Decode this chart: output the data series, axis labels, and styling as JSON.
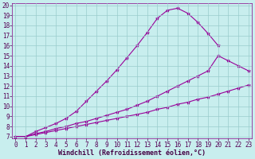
{
  "background_color": "#c8eeee",
  "line_color": "#990099",
  "xlabel": "Windchill (Refroidissement éolien,°C)",
  "xmin": 0,
  "xmax": 23,
  "ymin": 7,
  "ymax": 20,
  "line1_x": [
    0,
    1,
    2,
    3,
    4,
    5,
    6,
    7,
    8,
    9,
    10,
    11,
    12,
    13,
    14,
    15,
    16,
    17,
    18,
    19,
    20
  ],
  "line1_y": [
    7,
    7,
    7.5,
    7.9,
    8.3,
    8.8,
    9.5,
    10.5,
    11.5,
    12.5,
    13.6,
    14.8,
    16.0,
    17.3,
    18.7,
    19.5,
    19.7,
    19.2,
    18.3,
    17.2,
    16.0
  ],
  "line2_x": [
    0,
    1,
    2,
    3,
    4,
    5,
    6,
    7,
    8,
    9,
    10,
    11,
    12,
    13,
    14,
    15,
    16,
    17,
    18,
    19,
    20,
    21,
    22,
    23
  ],
  "line2_y": [
    7,
    7,
    7.3,
    7.5,
    7.8,
    8.0,
    8.3,
    8.5,
    8.8,
    9.1,
    9.4,
    9.7,
    10.1,
    10.5,
    11.0,
    11.5,
    12.0,
    12.5,
    13.0,
    13.5,
    15.0,
    14.5,
    14.0,
    13.5
  ],
  "line3_x": [
    0,
    1,
    2,
    3,
    4,
    5,
    6,
    7,
    8,
    9,
    10,
    11,
    12,
    13,
    14,
    15,
    16,
    17,
    18,
    19,
    20,
    21,
    22,
    23
  ],
  "line3_y": [
    7,
    7,
    7.2,
    7.4,
    7.6,
    7.8,
    8.0,
    8.2,
    8.4,
    8.6,
    8.8,
    9.0,
    9.2,
    9.4,
    9.7,
    9.9,
    10.2,
    10.4,
    10.7,
    10.9,
    11.2,
    11.5,
    11.8,
    12.1
  ],
  "grid_color": "#99cccc",
  "marker": "*",
  "marker_size": 3.0,
  "linewidth": 0.8,
  "xlabel_fontsize": 6,
  "tick_fontsize": 5.5
}
